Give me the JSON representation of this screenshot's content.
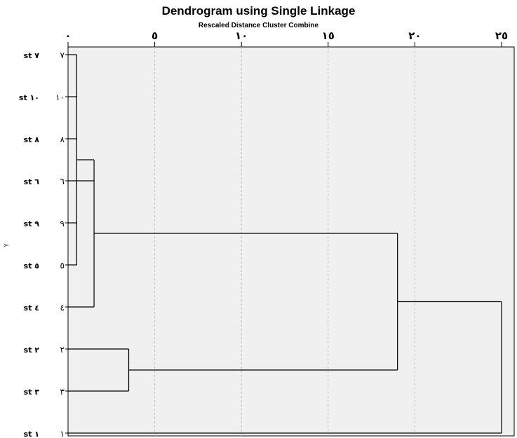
{
  "chart_data": {
    "type": "dendrogram",
    "title": "Dendrogram using Single Linkage",
    "subtitle": "Rescaled Distance Cluster Combine",
    "ylabel": "Y",
    "x_ticks": [
      "٠",
      "٥",
      "١٠",
      "١٥",
      "٢٠",
      "٢٥"
    ],
    "x_tick_values": [
      0,
      5,
      10,
      15,
      20,
      25
    ],
    "xlim": [
      0,
      25
    ],
    "grid": true,
    "leaves": [
      {
        "label": "st ٧",
        "number": "٧"
      },
      {
        "label": "st ١٠",
        "number": "١٠"
      },
      {
        "label": "st ٨",
        "number": "٨"
      },
      {
        "label": "st ٦",
        "number": "٦"
      },
      {
        "label": "st ٩",
        "number": "٩"
      },
      {
        "label": "st ٥",
        "number": "٥"
      },
      {
        "label": "st ٤",
        "number": "٤"
      },
      {
        "label": "st ٢",
        "number": "٢"
      },
      {
        "label": "st ٣",
        "number": "٣"
      },
      {
        "label": "st ١",
        "number": "١"
      }
    ],
    "merges": [
      {
        "id": "A",
        "members": [
          0,
          1,
          2,
          4,
          5
        ],
        "distance": 0.5
      },
      {
        "id": "B",
        "members": [
          "A",
          3,
          6
        ],
        "distance": 1.5
      },
      {
        "id": "C",
        "members": [
          7,
          8
        ],
        "distance": 3.5
      },
      {
        "id": "D",
        "members": [
          "B",
          "C"
        ],
        "distance": 19.0
      },
      {
        "id": "E",
        "members": [
          "D",
          9
        ],
        "distance": 25.0
      }
    ]
  },
  "colors": {
    "plot_background": "#f0f0f0",
    "line": "#000000",
    "grid": "#bdbdbd"
  }
}
